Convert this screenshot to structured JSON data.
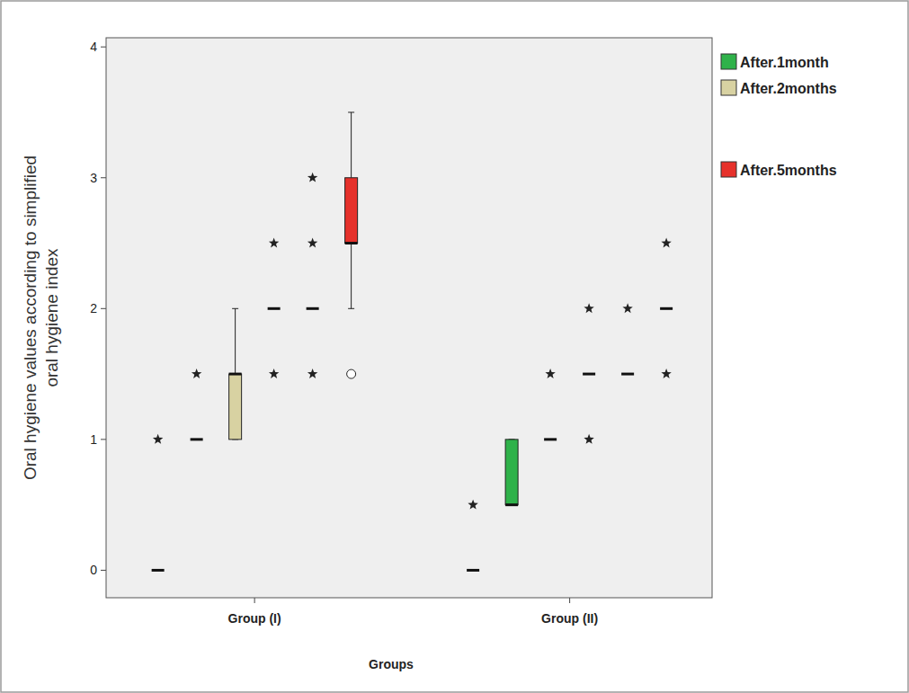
{
  "chart_data": {
    "type": "box",
    "xlabel": "Groups",
    "ylabel": [
      "Oral hygiene values according to simplified",
      "oral hygiene index"
    ],
    "categories": [
      "Group (I)",
      "Group (II)"
    ],
    "ylim": [
      -0.21,
      4.07
    ],
    "yticks": [
      0,
      1,
      2,
      3,
      4
    ],
    "legend": "right",
    "legend_entries": [
      {
        "name": "After.1month",
        "color": "#2fb24a"
      },
      {
        "name": "After.2months",
        "color": "#d8d2a2"
      },
      {
        "name": "After.5months",
        "color": "#e6312b"
      }
    ],
    "groups": [
      {
        "boxes": [
          {
            "q1": 0,
            "median": 0,
            "q3": 0,
            "whisker_low": 0,
            "whisker_high": 0,
            "outliers": [],
            "extremes": [
              1
            ]
          },
          {
            "q1": 1,
            "median": 1,
            "q3": 1,
            "whisker_low": 1,
            "whisker_high": 1,
            "outliers": [],
            "extremes": [
              1.5
            ]
          },
          {
            "q1": 1,
            "median": 1.5,
            "q3": 1.5,
            "whisker_low": 1,
            "whisker_high": 2,
            "outliers": [],
            "extremes": [],
            "color": "#d8d2a2"
          },
          {
            "q1": 2,
            "median": 2,
            "q3": 2,
            "whisker_low": 2,
            "whisker_high": 2,
            "outliers": [],
            "extremes": [
              2.5,
              1.5
            ]
          },
          {
            "q1": 2,
            "median": 2,
            "q3": 2,
            "whisker_low": 2,
            "whisker_high": 2,
            "outliers": [],
            "extremes": [
              3,
              2.5,
              1.5
            ]
          },
          {
            "q1": 2.5,
            "median": 2.5,
            "q3": 3,
            "whisker_low": 2,
            "whisker_high": 3.5,
            "outliers": [
              1.5
            ],
            "extremes": [],
            "color": "#e6312b"
          }
        ]
      },
      {
        "boxes": [
          {
            "q1": 0,
            "median": 0,
            "q3": 0,
            "whisker_low": 0,
            "whisker_high": 0,
            "outliers": [],
            "extremes": [
              0.5
            ]
          },
          {
            "q1": 0.5,
            "median": 0.5,
            "q3": 1,
            "whisker_low": 0.5,
            "whisker_high": 1,
            "outliers": [],
            "extremes": [],
            "color": "#2fb24a"
          },
          {
            "q1": 1,
            "median": 1,
            "q3": 1,
            "whisker_low": 1,
            "whisker_high": 1,
            "outliers": [],
            "extremes": [
              1.5
            ]
          },
          {
            "q1": 1.5,
            "median": 1.5,
            "q3": 1.5,
            "whisker_low": 1.5,
            "whisker_high": 1.5,
            "outliers": [],
            "extremes": [
              2,
              1
            ]
          },
          {
            "q1": 1.5,
            "median": 1.5,
            "q3": 1.5,
            "whisker_low": 1.5,
            "whisker_high": 1.5,
            "outliers": [],
            "extremes": [
              2
            ]
          },
          {
            "q1": 2,
            "median": 2,
            "q3": 2,
            "whisker_low": 2,
            "whisker_high": 2,
            "outliers": [],
            "extremes": [
              2.5,
              1.5
            ]
          }
        ]
      }
    ]
  }
}
